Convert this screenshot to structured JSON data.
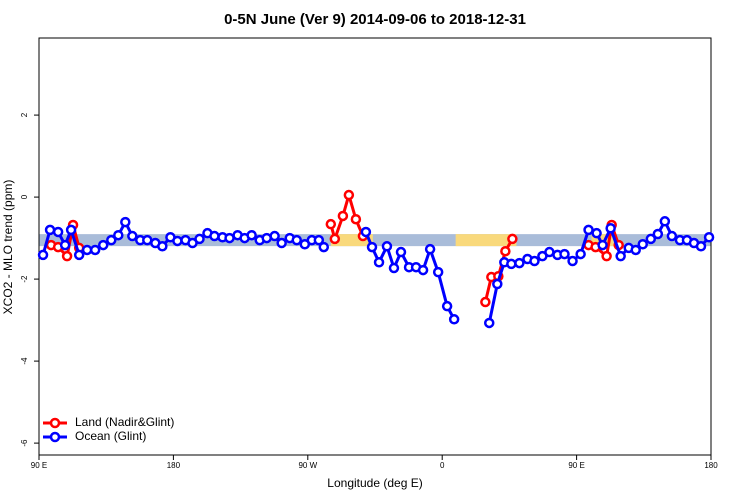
{
  "chart_data": {
    "type": "line",
    "title": "0-5N June (Ver 9)   2014-09-06 to 2018-12-31",
    "x_label": "Longitude (deg E)",
    "y_label": "XCO2 - MLO trend (ppm)",
    "xlim": [
      90,
      540
    ],
    "xticks": [
      {
        "value": 90,
        "label": "90 E"
      },
      {
        "value": 180,
        "label": "180"
      },
      {
        "value": 270,
        "label": "90 W"
      },
      {
        "value": 360,
        "label": "0"
      },
      {
        "value": 450,
        "label": "90 E"
      },
      {
        "value": 540,
        "label": "180"
      }
    ],
    "ylim": [
      -6.29,
      3.88
    ],
    "yticks": [
      -6,
      -4,
      -2,
      0,
      2
    ],
    "legend": "bottom-left",
    "band": {
      "value": -1.05,
      "segments": [
        {
          "color": "#a9bcd9",
          "x": [
            90,
            540
          ]
        },
        {
          "color": "#f9d97c",
          "x": [
            285.5,
            313.6
          ]
        },
        {
          "color": "#f9d97c",
          "x": [
            369,
            409.7
          ]
        },
        {
          "color": "#f9d97c",
          "x": [
            460,
            474.8
          ]
        }
      ]
    },
    "series": [
      {
        "name": "Land (Nadir&Glint)",
        "color": "#ff0000",
        "x": [
          98.1,
          102.8,
          108.8,
          112.8,
          116.9,
          null,
          285.4,
          288.1,
          293.5,
          297.5,
          302.2,
          306.9,
          null,
          388.9,
          392.9,
          397.6,
          402.3,
          407.0,
          null,
          458.0,
          462.7,
          470.1,
          473.5,
          478.2
        ],
        "values": [
          -1.17,
          -1.22,
          -1.44,
          -0.68,
          -1.24,
          null,
          -0.66,
          -1.02,
          -0.46,
          0.05,
          -0.54,
          -0.95,
          null,
          -2.56,
          -1.95,
          -1.93,
          -1.32,
          -1.02,
          null,
          -1.17,
          -1.22,
          -1.44,
          -0.68,
          -1.17
        ]
      },
      {
        "name": "Ocean (Glint)",
        "color": "#0000ff",
        "x": [
          92.7,
          97.4,
          102.8,
          107.5,
          111.5,
          116.9,
          122.2,
          127.6,
          133.0,
          138.4,
          143.1,
          147.8,
          152.5,
          157.8,
          162.5,
          167.9,
          172.6,
          178.0,
          182.7,
          188.1,
          192.8,
          197.5,
          202.8,
          207.5,
          212.9,
          217.6,
          223.0,
          227.7,
          232.4,
          237.8,
          242.5,
          247.8,
          252.5,
          257.9,
          262.6,
          268.0,
          272.7,
          277.4,
          280.7,
          null,
          308.9,
          313.0,
          317.7,
          323.0,
          327.7,
          332.4,
          337.8,
          342.5,
          347.2,
          351.9,
          357.3,
          363.3,
          368.0,
          null,
          391.5,
          396.9,
          401.6,
          406.3,
          411.7,
          417.1,
          421.8,
          427.1,
          431.8,
          437.2,
          441.9,
          447.3,
          452.7,
          458.0,
          463.4,
          467.4,
          472.8,
          479.5,
          484.9,
          489.6,
          494.3,
          499.7,
          504.4,
          509.1,
          513.8,
          519.2,
          523.9,
          528.6,
          533.3,
          538.7
        ],
        "values": [
          -1.41,
          -0.8,
          -0.85,
          -1.17,
          -0.8,
          -1.41,
          -1.29,
          -1.29,
          -1.17,
          -1.05,
          -0.93,
          -0.61,
          -0.95,
          -1.05,
          -1.05,
          -1.12,
          -1.2,
          -0.98,
          -1.07,
          -1.05,
          -1.12,
          -1.02,
          -0.88,
          -0.95,
          -0.98,
          -1.0,
          -0.93,
          -1.0,
          -0.93,
          -1.05,
          -1.0,
          -0.95,
          -1.12,
          -1.0,
          -1.05,
          -1.15,
          -1.05,
          -1.05,
          -1.22,
          null,
          -0.85,
          -1.22,
          -1.59,
          -1.2,
          -1.73,
          -1.34,
          -1.71,
          -1.71,
          -1.78,
          -1.27,
          -1.83,
          -2.66,
          -2.98,
          null,
          -3.07,
          -2.12,
          -1.59,
          -1.63,
          -1.61,
          -1.51,
          -1.56,
          -1.44,
          -1.34,
          -1.41,
          -1.39,
          -1.56,
          -1.39,
          -0.8,
          -0.88,
          -1.17,
          -0.76,
          -1.44,
          -1.24,
          -1.29,
          -1.15,
          -1.02,
          -0.9,
          -0.59,
          -0.95,
          -1.05,
          -1.05,
          -1.12,
          -1.2,
          -0.98
        ]
      }
    ]
  }
}
